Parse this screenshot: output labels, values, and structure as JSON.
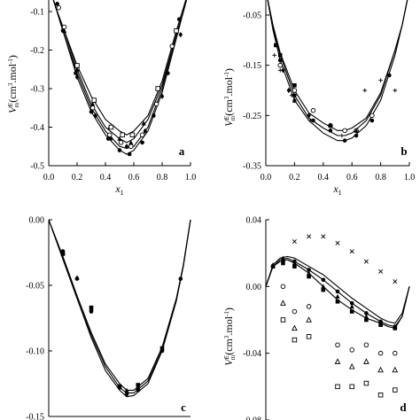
{
  "chart_data": [
    {
      "type": "scatter",
      "panel_label": "a",
      "ylabel": "V^E_m (cm^3.mol^-1)",
      "xlabel": "x_1",
      "xlim": [
        0.0,
        1.0
      ],
      "ylim": [
        -0.5,
        -0.07
      ],
      "xticks": [
        "0.0",
        "0.2",
        "0.4",
        "0.6",
        "0.8",
        "1.0"
      ],
      "yticks": [
        "-0.1",
        "-0.2",
        "-0.3",
        "-0.4",
        "-0.5"
      ],
      "curves": [
        {
          "x": [
            0,
            0.05,
            0.1,
            0.2,
            0.3,
            0.4,
            0.5,
            0.55,
            0.6,
            0.7,
            0.8,
            0.9,
            0.95,
            1.0
          ],
          "y": [
            -0.03,
            -0.09,
            -0.15,
            -0.27,
            -0.36,
            -0.42,
            -0.46,
            -0.47,
            -0.46,
            -0.41,
            -0.31,
            -0.17,
            -0.1,
            -0.03
          ]
        },
        {
          "x": [
            0,
            0.05,
            0.1,
            0.2,
            0.3,
            0.4,
            0.5,
            0.55,
            0.6,
            0.7,
            0.8,
            0.9,
            0.95,
            1.0
          ],
          "y": [
            -0.03,
            -0.09,
            -0.15,
            -0.26,
            -0.35,
            -0.41,
            -0.45,
            -0.455,
            -0.45,
            -0.4,
            -0.3,
            -0.16,
            -0.1,
            -0.03
          ]
        },
        {
          "x": [
            0,
            0.05,
            0.1,
            0.2,
            0.3,
            0.4,
            0.5,
            0.55,
            0.6,
            0.7,
            0.8,
            0.9,
            0.95,
            1.0
          ],
          "y": [
            -0.03,
            -0.09,
            -0.14,
            -0.25,
            -0.34,
            -0.4,
            -0.43,
            -0.44,
            -0.43,
            -0.38,
            -0.29,
            -0.16,
            -0.1,
            -0.03
          ]
        },
        {
          "x": [
            0,
            0.05,
            0.1,
            0.2,
            0.3,
            0.4,
            0.5,
            0.55,
            0.6,
            0.7,
            0.8,
            0.9,
            0.95,
            1.0
          ],
          "y": [
            -0.03,
            -0.09,
            -0.14,
            -0.24,
            -0.32,
            -0.38,
            -0.41,
            -0.42,
            -0.41,
            -0.37,
            -0.28,
            -0.15,
            -0.09,
            -0.03
          ]
        }
      ],
      "points": [
        {
          "marker": "circle-filled",
          "x": [
            0.06,
            0.1,
            0.19,
            0.3,
            0.42,
            0.5,
            0.57,
            0.66,
            0.74,
            0.84,
            0.92
          ],
          "y": [
            -0.08,
            -0.15,
            -0.26,
            -0.36,
            -0.43,
            -0.46,
            -0.47,
            -0.44,
            -0.37,
            -0.26,
            -0.12
          ]
        },
        {
          "marker": "circle-open",
          "x": [
            0.07,
            0.11,
            0.2,
            0.31,
            0.43,
            0.51,
            0.58,
            0.66,
            0.76,
            0.87
          ],
          "y": [
            -0.09,
            -0.14,
            -0.25,
            -0.35,
            -0.42,
            -0.44,
            -0.45,
            -0.42,
            -0.34,
            -0.19
          ]
        },
        {
          "marker": "triangle-filled",
          "x": [
            0.11,
            0.2,
            0.31,
            0.43,
            0.5,
            0.58,
            0.67
          ],
          "y": [
            -0.15,
            -0.25,
            -0.34,
            -0.4,
            -0.43,
            -0.44,
            -0.39
          ]
        },
        {
          "marker": "square-open",
          "x": [
            0.2,
            0.32,
            0.44,
            0.52,
            0.59,
            0.77,
            0.9
          ],
          "y": [
            -0.24,
            -0.33,
            -0.4,
            -0.42,
            -0.42,
            -0.3,
            -0.15
          ]
        },
        {
          "marker": "diamond-filled",
          "x": [
            0.2,
            0.33,
            0.44,
            0.55,
            0.68,
            0.8,
            0.93
          ],
          "y": [
            -0.27,
            -0.37,
            -0.43,
            -0.45,
            -0.41,
            -0.32,
            -0.16
          ]
        }
      ]
    },
    {
      "type": "scatter",
      "panel_label": "b",
      "ylabel": "V^E_m (cm^3.mol^-1)",
      "xlabel": "x_1",
      "xlim": [
        0.0,
        1.0
      ],
      "ylim": [
        -0.35,
        -0.02
      ],
      "xticks": [
        "0.0",
        "0.2",
        "0.4",
        "0.6",
        "0.8",
        "1.0"
      ],
      "yticks": [
        "-0.05",
        "-0.15",
        "-0.25",
        "-0.35"
      ],
      "curves": [
        {
          "x": [
            0,
            0.05,
            0.1,
            0.2,
            0.3,
            0.4,
            0.5,
            0.55,
            0.6,
            0.7,
            0.8,
            0.9,
            0.95,
            1.0
          ],
          "y": [
            0.0,
            -0.08,
            -0.14,
            -0.22,
            -0.26,
            -0.285,
            -0.3,
            -0.3,
            -0.295,
            -0.27,
            -0.22,
            -0.13,
            -0.07,
            0.0
          ]
        },
        {
          "x": [
            0,
            0.05,
            0.1,
            0.2,
            0.3,
            0.4,
            0.5,
            0.55,
            0.6,
            0.7,
            0.8,
            0.9,
            0.95,
            1.0
          ],
          "y": [
            0.0,
            -0.075,
            -0.13,
            -0.21,
            -0.255,
            -0.275,
            -0.29,
            -0.29,
            -0.285,
            -0.26,
            -0.21,
            -0.12,
            -0.07,
            0.0
          ]
        },
        {
          "x": [
            0,
            0.05,
            0.1,
            0.2,
            0.3,
            0.4,
            0.5,
            0.55,
            0.6,
            0.7,
            0.8,
            0.9,
            0.95,
            1.0
          ],
          "y": [
            0.0,
            -0.07,
            -0.125,
            -0.2,
            -0.245,
            -0.265,
            -0.28,
            -0.28,
            -0.275,
            -0.255,
            -0.205,
            -0.12,
            -0.07,
            0.0
          ]
        }
      ],
      "points": [
        {
          "marker": "circle-filled",
          "x": [
            0.1,
            0.2,
            0.33,
            0.45,
            0.55,
            0.63,
            0.74,
            0.86
          ],
          "y": [
            -0.14,
            -0.21,
            -0.26,
            -0.28,
            -0.3,
            -0.29,
            -0.26,
            -0.17
          ]
        },
        {
          "marker": "circle-open",
          "x": [
            0.1,
            0.2,
            0.33,
            0.45,
            0.55,
            0.63,
            0.74
          ],
          "y": [
            -0.15,
            -0.2,
            -0.24,
            -0.27,
            -0.28,
            -0.28,
            -0.25
          ]
        },
        {
          "marker": "diamond-filled",
          "x": [
            0.12,
            0.16,
            0.2,
            0.3,
            0.45
          ],
          "y": [
            -0.16,
            -0.2,
            -0.22,
            -0.25,
            -0.27
          ]
        },
        {
          "marker": "square-filled",
          "x": [
            0.07,
            0.1,
            0.2
          ],
          "y": [
            -0.11,
            -0.13,
            -0.19
          ]
        },
        {
          "marker": "triangle-filled",
          "x": [
            0.2,
            0.45,
            0.63
          ],
          "y": [
            -0.22,
            -0.27,
            -0.28
          ]
        },
        {
          "marker": "plus",
          "x": [
            0.06,
            0.1,
            0.18,
            0.31,
            0.45,
            0.53,
            0.69,
            0.8,
            0.9
          ],
          "y": [
            -0.13,
            -0.16,
            -0.21,
            -0.26,
            -0.27,
            -0.29,
            -0.2,
            -0.18,
            -0.2
          ]
        }
      ]
    },
    {
      "type": "scatter",
      "panel_label": "c",
      "ylabel": "",
      "xlabel": "",
      "xlim": [
        0.0,
        1.0
      ],
      "ylim": [
        -0.15,
        0.0
      ],
      "xticks": [],
      "yticks": [
        "0.00",
        "-0.05",
        "-0.10",
        "-0.15"
      ],
      "curves": [
        {
          "x": [
            0,
            0.05,
            0.1,
            0.2,
            0.3,
            0.4,
            0.5,
            0.55,
            0.6,
            0.7,
            0.8,
            0.9,
            0.95,
            1.0
          ],
          "y": [
            0.0,
            -0.015,
            -0.03,
            -0.06,
            -0.09,
            -0.115,
            -0.13,
            -0.135,
            -0.134,
            -0.125,
            -0.1,
            -0.062,
            -0.035,
            0.0
          ]
        },
        {
          "x": [
            0,
            0.05,
            0.1,
            0.2,
            0.3,
            0.4,
            0.5,
            0.55,
            0.6,
            0.7,
            0.8,
            0.9,
            0.95,
            1.0
          ],
          "y": [
            0.0,
            -0.015,
            -0.03,
            -0.06,
            -0.088,
            -0.112,
            -0.128,
            -0.132,
            -0.132,
            -0.123,
            -0.099,
            -0.061,
            -0.035,
            0.0
          ]
        },
        {
          "x": [
            0,
            0.05,
            0.1,
            0.2,
            0.3,
            0.4,
            0.5,
            0.55,
            0.6,
            0.7,
            0.8,
            0.9,
            0.95,
            1.0
          ],
          "y": [
            0.0,
            -0.014,
            -0.028,
            -0.058,
            -0.086,
            -0.11,
            -0.125,
            -0.13,
            -0.13,
            -0.121,
            -0.097,
            -0.06,
            -0.034,
            0.0
          ]
        }
      ],
      "points": [
        {
          "marker": "circle-filled",
          "x": [
            0.1,
            0.2,
            0.3,
            0.5,
            0.55,
            0.63,
            0.8,
            0.93
          ],
          "y": [
            -0.024,
            -0.045,
            -0.07,
            -0.128,
            -0.133,
            -0.13,
            -0.1,
            -0.045
          ]
        },
        {
          "marker": "triangle-filled",
          "x": [
            0.1,
            0.2,
            0.3,
            0.55,
            0.63
          ],
          "y": [
            -0.025,
            -0.044,
            -0.068,
            -0.13,
            -0.128
          ]
        },
        {
          "marker": "square-filled",
          "x": [
            0.1,
            0.3,
            0.5,
            0.63,
            0.8
          ],
          "y": [
            -0.026,
            -0.067,
            -0.127,
            -0.126,
            -0.098
          ]
        }
      ]
    },
    {
      "type": "scatter",
      "panel_label": "d",
      "ylabel": "V^E_m (cm^3.mol^-1)",
      "xlabel": "",
      "xlim": [
        0.0,
        1.0
      ],
      "ylim": [
        -0.08,
        0.04
      ],
      "xticks": [],
      "yticks": [
        "0.04",
        "0.00",
        "-0.04",
        "-0.08"
      ],
      "curves": [
        {
          "x": [
            0,
            0.05,
            0.1,
            0.15,
            0.2,
            0.3,
            0.4,
            0.5,
            0.6,
            0.7,
            0.8,
            0.85,
            0.9,
            0.95,
            1.0
          ],
          "y": [
            0.0,
            0.012,
            0.015,
            0.016,
            0.014,
            0.008,
            0.0,
            -0.008,
            -0.014,
            -0.019,
            -0.022,
            -0.024,
            -0.025,
            -0.018,
            0.0
          ]
        },
        {
          "x": [
            0,
            0.05,
            0.1,
            0.15,
            0.2,
            0.3,
            0.4,
            0.5,
            0.6,
            0.7,
            0.8,
            0.85,
            0.9,
            0.95,
            1.0
          ],
          "y": [
            0.0,
            0.012,
            0.016,
            0.017,
            0.015,
            0.01,
            0.004,
            -0.003,
            -0.01,
            -0.016,
            -0.021,
            -0.023,
            -0.024,
            -0.018,
            0.0
          ]
        },
        {
          "x": [
            0,
            0.05,
            0.1,
            0.15,
            0.2,
            0.3,
            0.4,
            0.5,
            0.6,
            0.7,
            0.8,
            0.85,
            0.9,
            0.95,
            1.0
          ],
          "y": [
            0.0,
            0.013,
            0.017,
            0.018,
            0.017,
            0.012,
            0.007,
            0.0,
            -0.007,
            -0.013,
            -0.019,
            -0.021,
            -0.022,
            -0.016,
            0.0
          ]
        }
      ],
      "points": [
        {
          "marker": "circle-filled",
          "x": [
            0.05,
            0.12,
            0.2,
            0.3,
            0.4,
            0.5,
            0.6,
            0.7,
            0.8,
            0.9
          ],
          "y": [
            0.012,
            0.016,
            0.015,
            0.01,
            0.004,
            -0.003,
            -0.01,
            -0.016,
            -0.021,
            -0.024
          ]
        },
        {
          "marker": "triangle-filled",
          "x": [
            0.05,
            0.12,
            0.2,
            0.3,
            0.4,
            0.5,
            0.6,
            0.7,
            0.8,
            0.9
          ],
          "y": [
            0.013,
            0.017,
            0.014,
            0.008,
            0.0,
            -0.006,
            -0.012,
            -0.018,
            -0.022,
            -0.024
          ]
        },
        {
          "marker": "square-filled",
          "x": [
            0.05,
            0.12,
            0.2,
            0.3,
            0.4,
            0.5,
            0.6,
            0.7,
            0.8,
            0.9
          ],
          "y": [
            0.012,
            0.014,
            0.012,
            0.006,
            -0.002,
            -0.009,
            -0.015,
            -0.02,
            -0.023,
            -0.025
          ]
        },
        {
          "marker": "cross",
          "x": [
            0.2,
            0.3,
            0.4,
            0.5,
            0.6,
            0.7,
            0.8,
            0.9
          ],
          "y": [
            0.027,
            0.03,
            0.03,
            0.026,
            0.021,
            0.015,
            0.009,
            0.003
          ]
        },
        {
          "marker": "circle-open",
          "x": [
            0.12,
            0.2,
            0.3,
            0.5,
            0.6,
            0.7,
            0.8,
            0.9
          ],
          "y": [
            0.0,
            -0.015,
            -0.012,
            -0.035,
            -0.038,
            -0.035,
            -0.04,
            -0.04
          ]
        },
        {
          "marker": "triangle-open",
          "x": [
            0.12,
            0.2,
            0.3,
            0.5,
            0.6,
            0.7,
            0.8,
            0.9
          ],
          "y": [
            -0.01,
            -0.025,
            -0.02,
            -0.045,
            -0.048,
            -0.045,
            -0.05,
            -0.05
          ]
        },
        {
          "marker": "square-open",
          "x": [
            0.12,
            0.2,
            0.3,
            0.5,
            0.6,
            0.7,
            0.8,
            0.9
          ],
          "y": [
            -0.02,
            -0.032,
            -0.03,
            -0.06,
            -0.06,
            -0.058,
            -0.065,
            -0.062
          ]
        }
      ]
    }
  ]
}
